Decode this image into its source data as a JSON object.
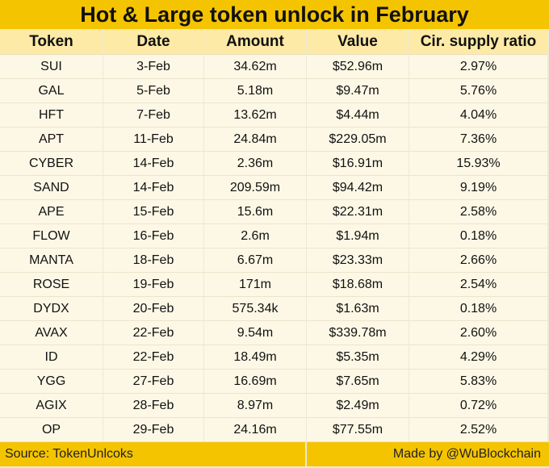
{
  "title": "Hot & Large token unlock in February",
  "headers": [
    "Token",
    "Date",
    "Amount",
    "Value",
    "Cir. supply ratio"
  ],
  "rows": [
    [
      "SUI",
      "3-Feb",
      "34.62m",
      "$52.96m",
      "2.97%"
    ],
    [
      "GAL",
      "5-Feb",
      "5.18m",
      "$9.47m",
      "5.76%"
    ],
    [
      "HFT",
      "7-Feb",
      "13.62m",
      "$4.44m",
      "4.04%"
    ],
    [
      "APT",
      "11-Feb",
      "24.84m",
      "$229.05m",
      "7.36%"
    ],
    [
      "CYBER",
      "14-Feb",
      "2.36m",
      "$16.91m",
      "15.93%"
    ],
    [
      "SAND",
      "14-Feb",
      "209.59m",
      "$94.42m",
      "9.19%"
    ],
    [
      "APE",
      "15-Feb",
      "15.6m",
      "$22.31m",
      "2.58%"
    ],
    [
      "FLOW",
      "16-Feb",
      "2.6m",
      "$1.94m",
      "0.18%"
    ],
    [
      "MANTA",
      "18-Feb",
      "6.67m",
      "$23.33m",
      "2.66%"
    ],
    [
      "ROSE",
      "19-Feb",
      "171m",
      "$18.68m",
      "2.54%"
    ],
    [
      "DYDX",
      "20-Feb",
      "575.34k",
      "$1.63m",
      "0.18%"
    ],
    [
      "AVAX",
      "22-Feb",
      "9.54m",
      "$339.78m",
      "2.60%"
    ],
    [
      "ID",
      "22-Feb",
      "18.49m",
      "$5.35m",
      "4.29%"
    ],
    [
      "YGG",
      "27-Feb",
      "16.69m",
      "$7.65m",
      "5.83%"
    ],
    [
      "AGIX",
      "28-Feb",
      "8.97m",
      "$2.49m",
      "0.72%"
    ],
    [
      "OP",
      "29-Feb",
      "24.16m",
      "$77.55m",
      "2.52%"
    ]
  ],
  "footer": {
    "source": "Source: TokenUnlcoks",
    "credit": "Made by @WuBlockchain"
  },
  "colors": {
    "title_bg": "#f5c400",
    "header_bg": "#fdeaa6",
    "row_bg": "#fdf8e6"
  }
}
